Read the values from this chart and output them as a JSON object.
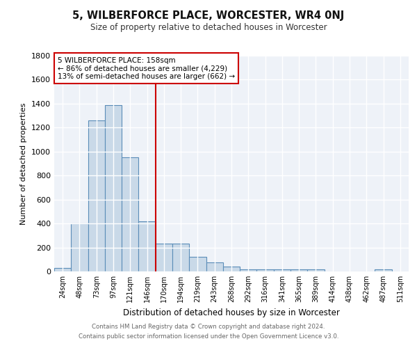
{
  "title": "5, WILBERFORCE PLACE, WORCESTER, WR4 0NJ",
  "subtitle": "Size of property relative to detached houses in Worcester",
  "xlabel": "Distribution of detached houses by size in Worcester",
  "ylabel": "Number of detached properties",
  "categories": [
    "24sqm",
    "48sqm",
    "73sqm",
    "97sqm",
    "121sqm",
    "146sqm",
    "170sqm",
    "194sqm",
    "219sqm",
    "243sqm",
    "268sqm",
    "292sqm",
    "316sqm",
    "341sqm",
    "365sqm",
    "389sqm",
    "414sqm",
    "438sqm",
    "462sqm",
    "487sqm",
    "511sqm"
  ],
  "values": [
    30,
    400,
    1260,
    1390,
    950,
    420,
    235,
    235,
    120,
    75,
    40,
    20,
    15,
    20,
    15,
    15,
    0,
    0,
    0,
    15,
    0
  ],
  "bar_color": "#c9d9e8",
  "bar_edge_color": "#5b8db8",
  "background_color": "#eef2f8",
  "grid_color": "#ffffff",
  "vline_color": "#cc0000",
  "annotation_text": "5 WILBERFORCE PLACE: 158sqm\n← 86% of detached houses are smaller (4,229)\n13% of semi-detached houses are larger (662) →",
  "annotation_box_color": "#ffffff",
  "annotation_box_edge": "#cc0000",
  "ylim": [
    0,
    1800
  ],
  "yticks": [
    0,
    200,
    400,
    600,
    800,
    1000,
    1200,
    1400,
    1600,
    1800
  ],
  "footer_line1": "Contains HM Land Registry data © Crown copyright and database right 2024.",
  "footer_line2": "Contains public sector information licensed under the Open Government Licence v3.0."
}
